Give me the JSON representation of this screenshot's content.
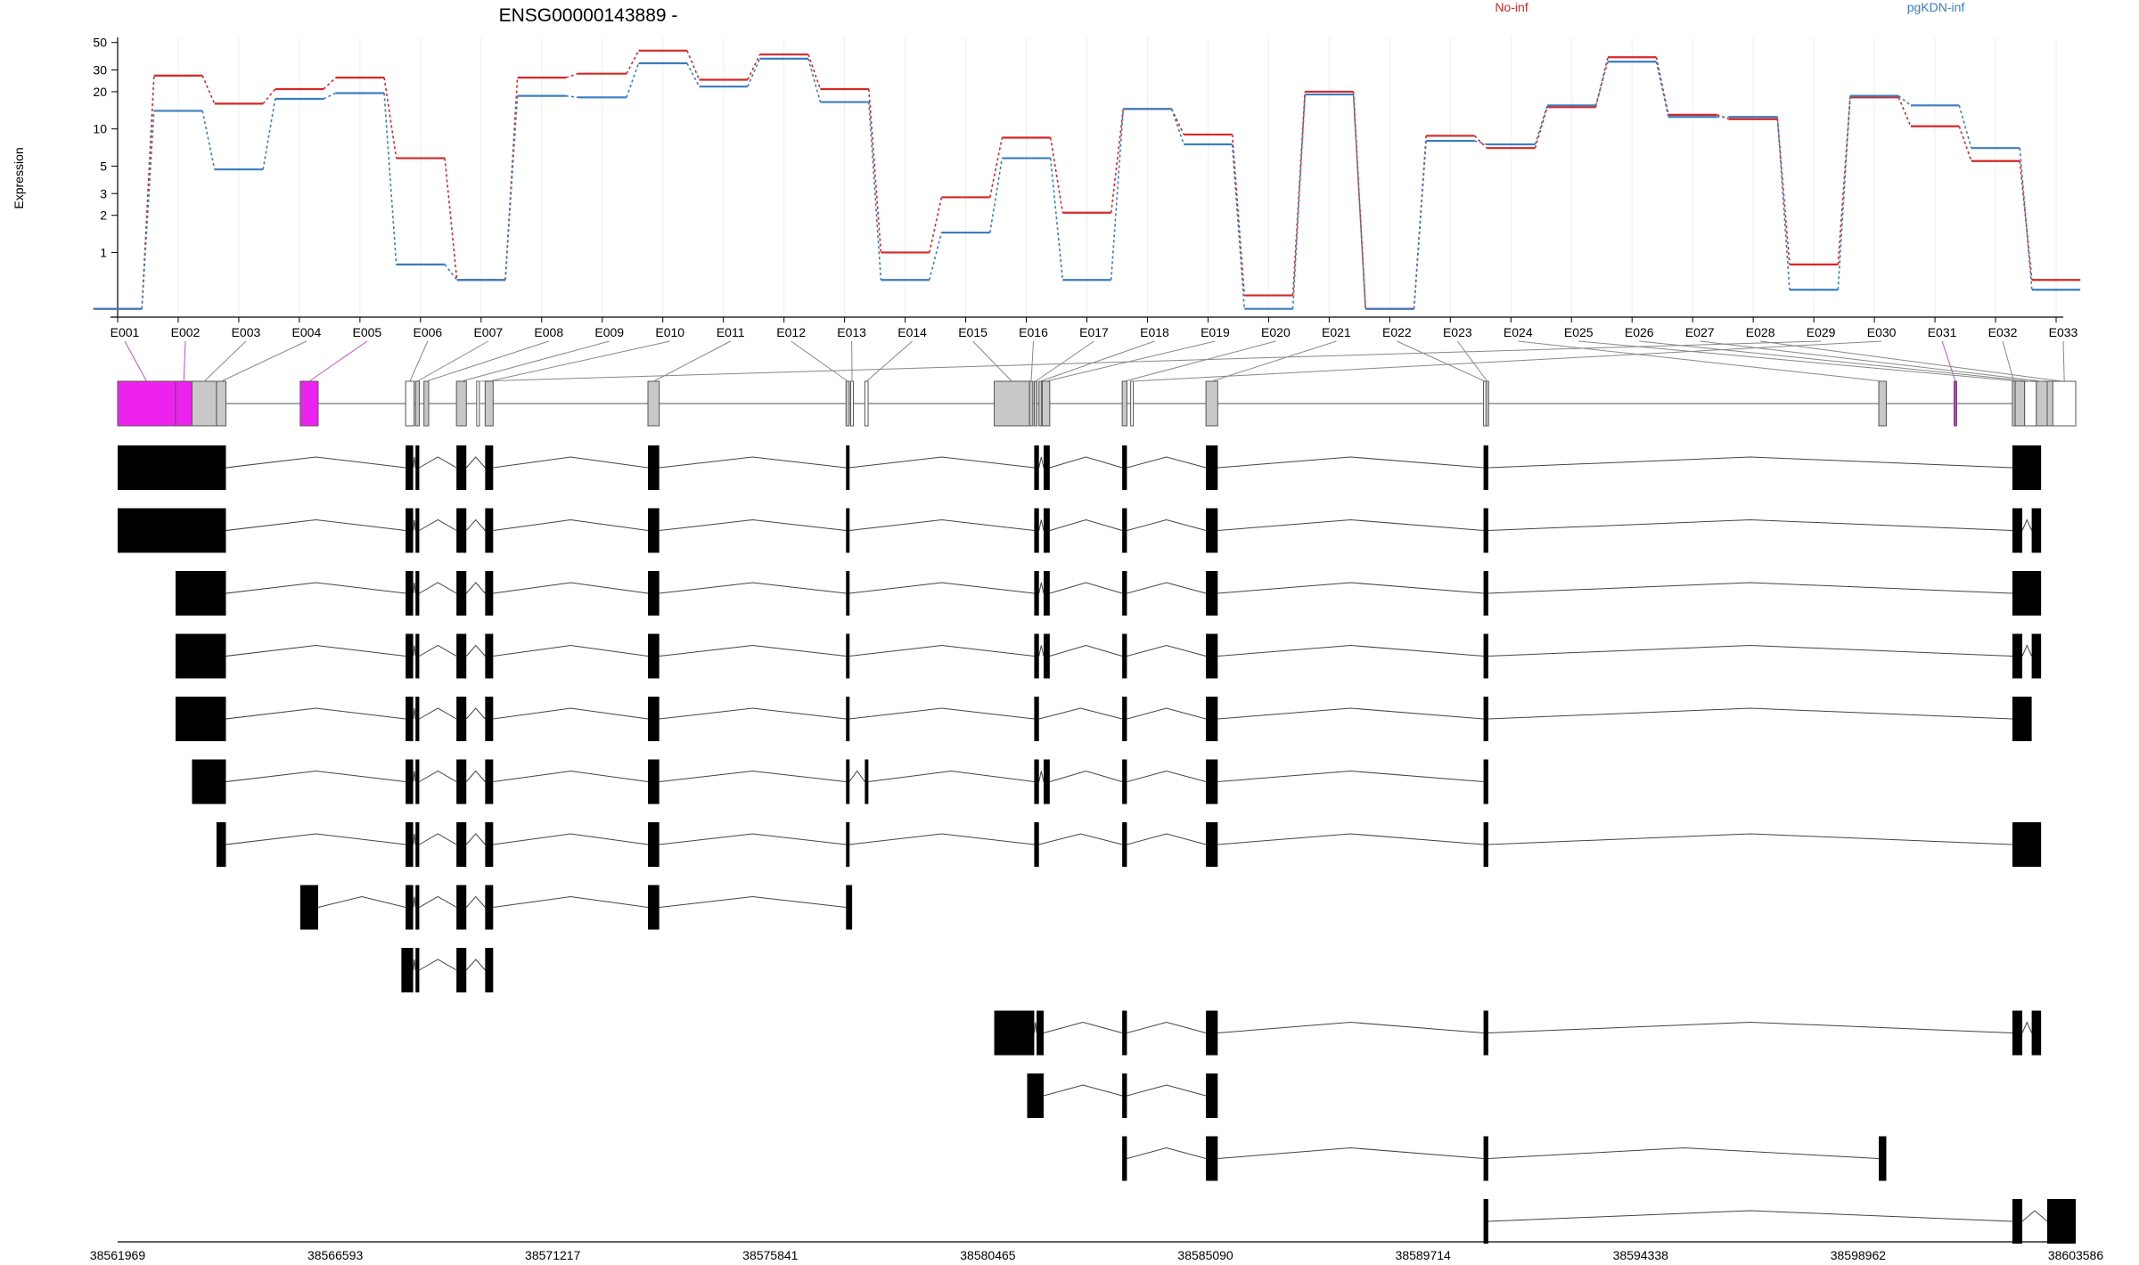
{
  "chart_data": {
    "type": "line",
    "title": "ENSG00000143889 -",
    "ylabel": "Expression",
    "y_scale": "log",
    "y_ticks": [
      1,
      2,
      3,
      5,
      10,
      20,
      30,
      50
    ],
    "ylim": [
      0.3,
      55
    ],
    "categories": [
      "E001",
      "E002",
      "E003",
      "E004",
      "E005",
      "E006",
      "E007",
      "E008",
      "E009",
      "E010",
      "E011",
      "E012",
      "E013",
      "E014",
      "E015",
      "E016",
      "E017",
      "E018",
      "E019",
      "E020",
      "E021",
      "E022",
      "E023",
      "E024",
      "E025",
      "E026",
      "E027",
      "E028",
      "E029",
      "E030",
      "E031",
      "E032",
      "E033"
    ],
    "series": [
      {
        "name": "No-inf",
        "color": "#d62728",
        "values": [
          0.35,
          27,
          16,
          21,
          26,
          5.8,
          0.6,
          26,
          28,
          43,
          25,
          40,
          21,
          1.0,
          2.8,
          8.5,
          2.1,
          14.5,
          9.0,
          0.45,
          20,
          0.35,
          8.8,
          7.0,
          15,
          38,
          13,
          12,
          0.8,
          18,
          10.5,
          5.5,
          0.6
        ]
      },
      {
        "name": "pgKDN-inf",
        "color": "#3a7dc0",
        "values": [
          0.35,
          14,
          4.7,
          17.5,
          19.5,
          0.8,
          0.6,
          18.5,
          18,
          34,
          22,
          37,
          16.5,
          0.6,
          1.45,
          5.8,
          0.6,
          14.5,
          7.5,
          0.35,
          19,
          0.35,
          8.0,
          7.5,
          15.5,
          35,
          12.5,
          12.5,
          0.5,
          18.5,
          15.5,
          7.0,
          0.5
        ]
      }
    ],
    "legend": "top-right",
    "gene_model": {
      "genomic_range": [
        38561969,
        38603586
      ],
      "axis_ticks": [
        "38561969",
        "38566593",
        "38571217",
        "38575841",
        "38580465",
        "38585090",
        "38589714",
        "38594338",
        "38598962",
        "38603586"
      ],
      "exon_bins": [
        {
          "id": "E001",
          "status": "significant"
        },
        {
          "id": "E002",
          "status": "significant"
        },
        {
          "id": "E003",
          "status": "tested"
        },
        {
          "id": "E004",
          "status": "tested"
        },
        {
          "id": "E005",
          "status": "significant"
        },
        {
          "id": "E006",
          "status": "not-tested"
        },
        {
          "id": "E007",
          "status": "tested"
        },
        {
          "id": "E008",
          "status": "tested"
        },
        {
          "id": "E009",
          "status": "tested"
        },
        {
          "id": "E010",
          "status": "tested"
        },
        {
          "id": "E011",
          "status": "tested"
        },
        {
          "id": "E012",
          "status": "tested"
        },
        {
          "id": "E013",
          "status": "not-tested"
        },
        {
          "id": "E014",
          "status": "not-tested"
        },
        {
          "id": "E015",
          "status": "tested"
        },
        {
          "id": "E016",
          "status": "tested"
        },
        {
          "id": "E017",
          "status": "tested"
        },
        {
          "id": "E018",
          "status": "tested"
        },
        {
          "id": "E019",
          "status": "tested"
        },
        {
          "id": "E020",
          "status": "tested"
        },
        {
          "id": "E021",
          "status": "tested"
        },
        {
          "id": "E022",
          "status": "not-tested"
        },
        {
          "id": "E023",
          "status": "tested"
        },
        {
          "id": "E024",
          "status": "tested"
        },
        {
          "id": "E025",
          "status": "tested"
        },
        {
          "id": "E026",
          "status": "not-tested"
        },
        {
          "id": "E027",
          "status": "tested"
        },
        {
          "id": "E028",
          "status": "tested"
        },
        {
          "id": "E029",
          "status": "not-tested"
        },
        {
          "id": "E030",
          "status": "not-tested"
        },
        {
          "id": "E031",
          "status": "significant"
        },
        {
          "id": "E032",
          "status": "tested"
        },
        {
          "id": "E033",
          "status": "not-tested"
        }
      ],
      "bin_colors": {
        "significant": "#ee22ee",
        "tested": "#c8c8c8",
        "not-tested": "#ffffff"
      },
      "transcript_count": 13
    }
  }
}
